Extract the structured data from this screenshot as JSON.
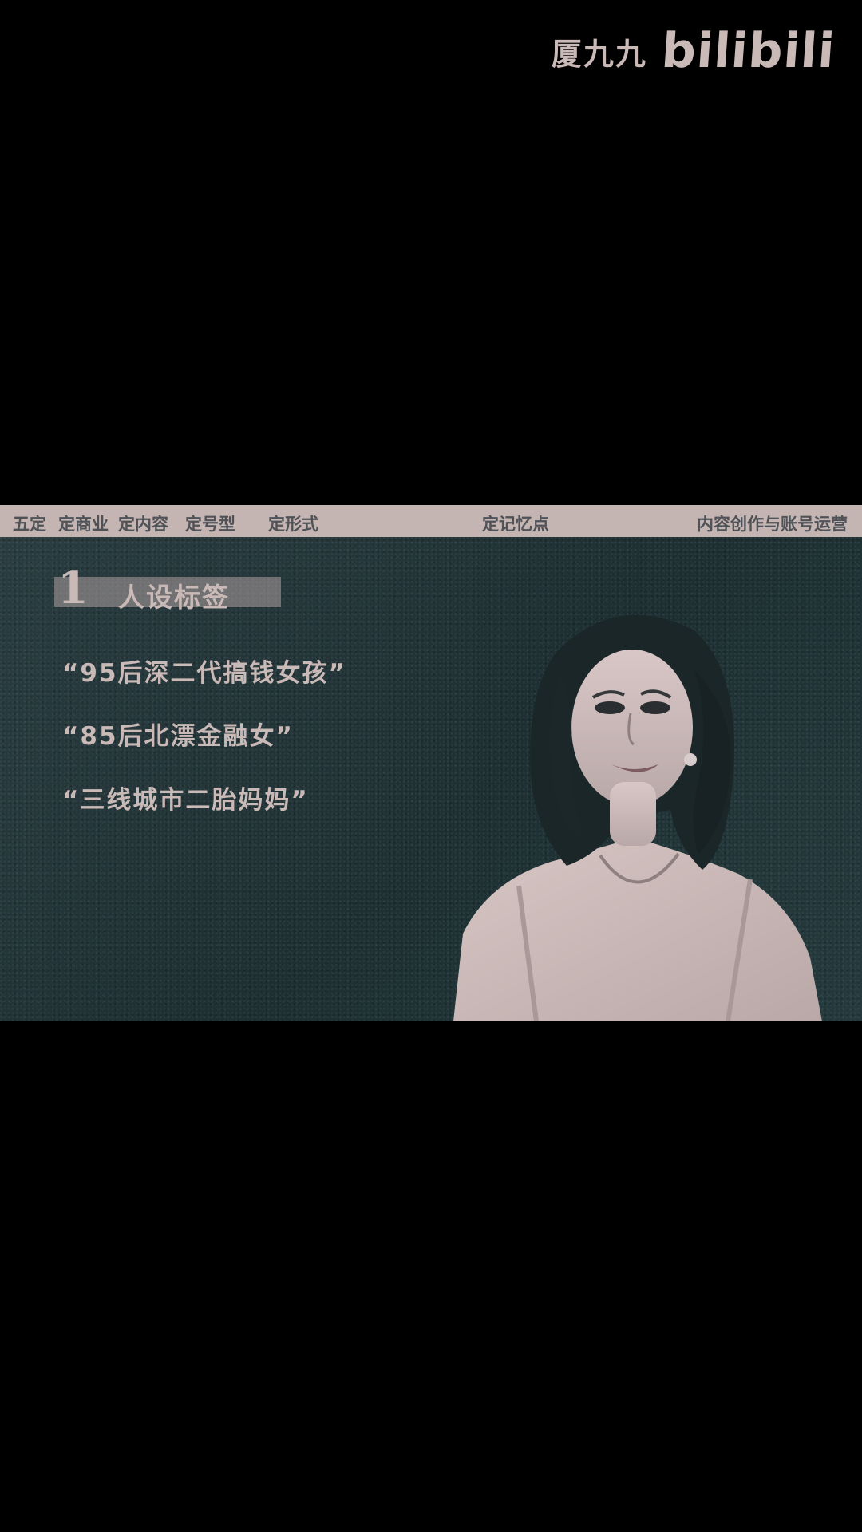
{
  "branding": {
    "uploader_name": "厦九九",
    "platform_logo": "bilibili"
  },
  "video": {
    "top_nav": {
      "items": [
        "五定",
        "定商业",
        "定内容",
        "定号型",
        "定形式",
        "定记忆点",
        "内容创作与账号运营"
      ]
    },
    "section": {
      "number": "1",
      "title": "人设标签"
    },
    "tags": [
      "“95后深二代搞钱女孩”",
      "“85后北漂金融女”",
      "“三线城市二胎妈妈”"
    ],
    "colors": {
      "text_pink": "#c9b9b7",
      "board_teal": "#223538",
      "nav_bar": "#c4b4b2",
      "nav_text": "#4f5358"
    }
  }
}
